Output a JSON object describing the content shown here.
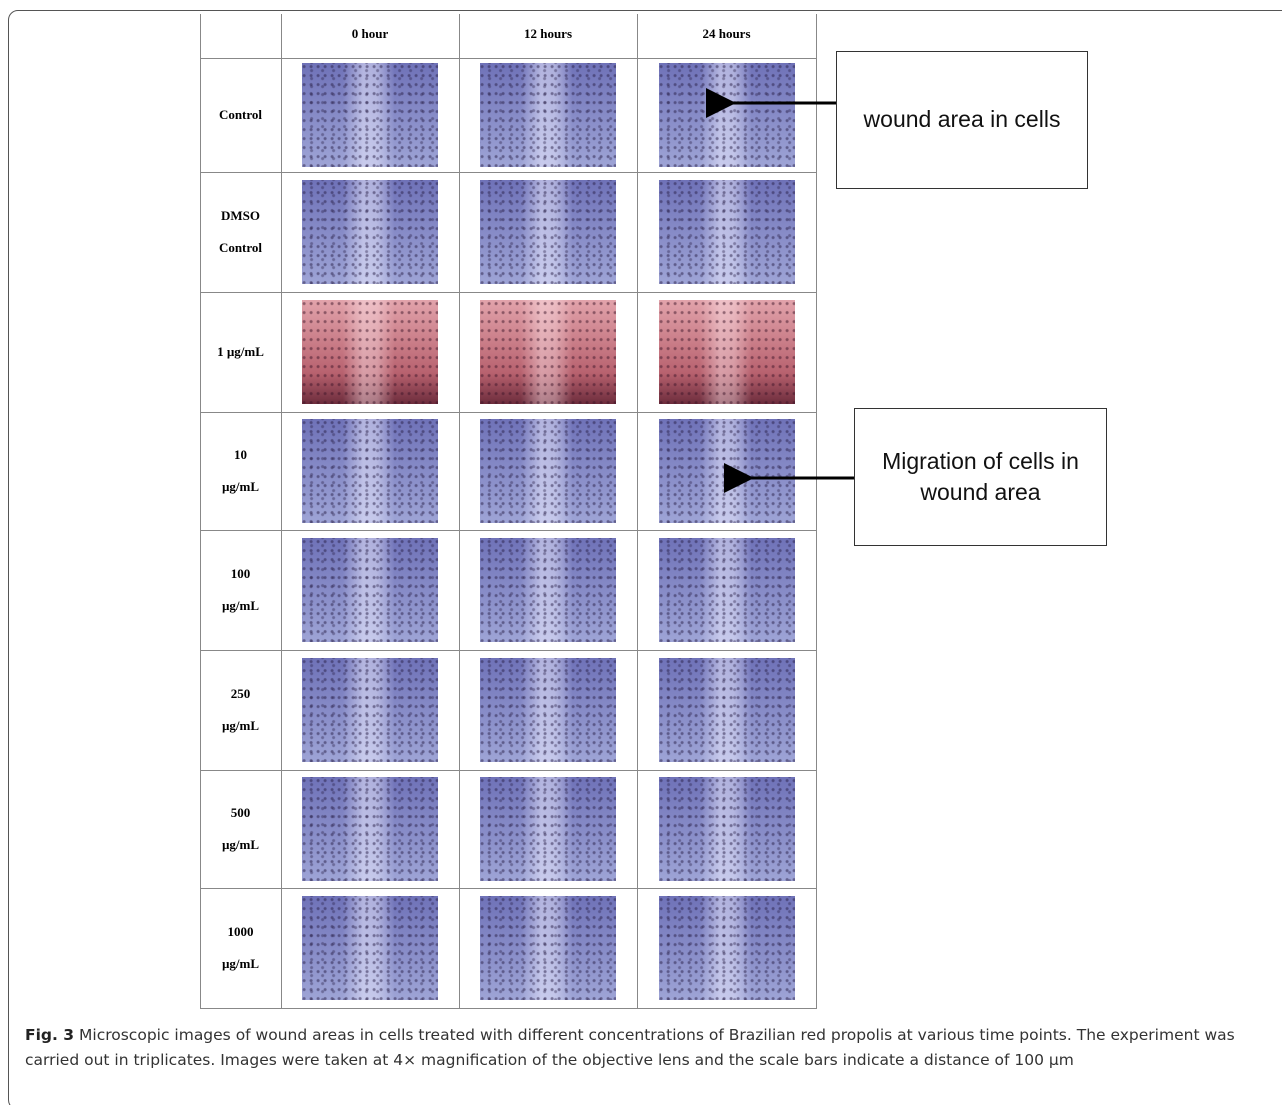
{
  "figure": {
    "columns": [
      "0 hour",
      "12 hours",
      "24 hours"
    ],
    "rows": [
      [
        "Control"
      ],
      [
        "DMSO",
        "Control"
      ],
      [
        "1 µg/mL"
      ],
      [
        "10",
        "µg/mL"
      ],
      [
        "100",
        "µg/mL"
      ],
      [
        "250",
        "µg/mL"
      ],
      [
        "500",
        "µg/mL"
      ],
      [
        "1000",
        "µg/mL"
      ]
    ],
    "annotations": [
      "wound area in cells",
      "Migration of cells in wound area"
    ],
    "caption": {
      "label": "Fig. 3",
      "text": "Microscopic images of wound areas in cells treated with different concentrations of Brazilian red propolis at various time points. The experiment was carried out in triplicates. Images were taken at 4× magnification of the objective lens and the scale bars indicate a distance of 100 µm"
    }
  }
}
